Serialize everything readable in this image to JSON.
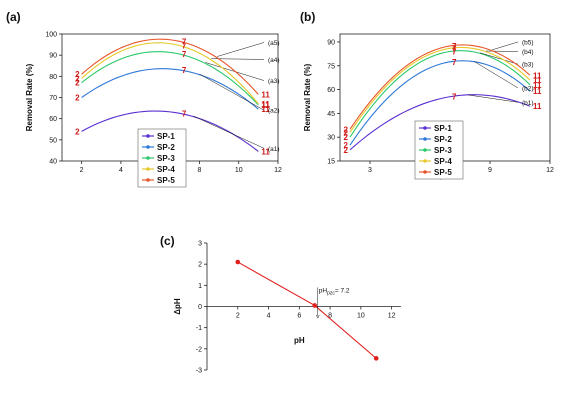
{
  "chart_data": [
    {
      "panel": "(a)",
      "type": "line",
      "xlabel": "pH",
      "ylabel": "Removal Rate (%)",
      "xlim": [
        1,
        12
      ],
      "ylim": [
        40,
        100
      ],
      "xticks": [
        2,
        4,
        6,
        8,
        10,
        12
      ],
      "yticks": [
        40,
        50,
        60,
        70,
        80,
        90,
        100
      ],
      "legend_position": "bottom-center",
      "series": [
        {
          "name": "SP-1",
          "color": "#5b2fd0",
          "marker": "square",
          "x": [
            2,
            7,
            11
          ],
          "y": [
            54,
            62.5,
            44.5
          ],
          "point_labels": [
            "2",
            "7",
            "11"
          ],
          "callout": "(a1)"
        },
        {
          "name": "SP-2",
          "color": "#2e78d8",
          "marker": "circle",
          "x": [
            2,
            7,
            11
          ],
          "y": [
            70,
            83,
            64.5
          ],
          "point_labels": [
            "2",
            "7",
            "11"
          ],
          "callout": "(a2)"
        },
        {
          "name": "SP-3",
          "color": "#2bc86a",
          "marker": "triangle",
          "x": [
            2,
            7,
            11
          ],
          "y": [
            77,
            90.5,
            66.5
          ],
          "point_labels": [
            "2",
            "7",
            "11"
          ],
          "callout": "(a3)"
        },
        {
          "name": "SP-4",
          "color": "#e6c92a",
          "marker": "triangle-down",
          "x": [
            2,
            7,
            11
          ],
          "y": [
            79,
            94.5,
            67
          ],
          "point_labels": [
            "2",
            "7",
            "11"
          ],
          "callout": "(a4)"
        },
        {
          "name": "SP-5",
          "color": "#e8552a",
          "marker": "star",
          "x": [
            2,
            7,
            11
          ],
          "y": [
            81,
            96.5,
            71.5
          ],
          "point_labels": [
            "2",
            "7",
            "11"
          ],
          "callout": "(a5)"
        }
      ]
    },
    {
      "panel": "(b)",
      "type": "line",
      "xlabel": "pH",
      "ylabel": "Removal Rate (%)",
      "xlim": [
        1.5,
        12
      ],
      "ylim": [
        15,
        95
      ],
      "xticks": [
        3,
        6,
        9,
        12
      ],
      "yticks": [
        15,
        30,
        45,
        60,
        75,
        90
      ],
      "legend_position": "bottom-right",
      "series": [
        {
          "name": "SP-1",
          "color": "#5b2fd0",
          "marker": "square",
          "x": [
            2,
            7,
            11
          ],
          "y": [
            22,
            55.5,
            49.5
          ],
          "point_labels": [
            "2",
            "7",
            "11"
          ],
          "callout": "(b1)"
        },
        {
          "name": "SP-2",
          "color": "#2e78d8",
          "marker": "circle",
          "x": [
            2,
            7,
            11
          ],
          "y": [
            25,
            77.5,
            59
          ],
          "point_labels": [
            "2",
            "7",
            "11"
          ],
          "callout": "(b2)"
        },
        {
          "name": "SP-3",
          "color": "#2bc86a",
          "marker": "triangle",
          "x": [
            2,
            7,
            11
          ],
          "y": [
            30,
            84,
            63
          ],
          "point_labels": [
            "2",
            "7",
            "11"
          ],
          "callout": "(b3)"
        },
        {
          "name": "SP-4",
          "color": "#e6c92a",
          "marker": "triangle-down",
          "x": [
            2,
            7,
            11
          ],
          "y": [
            33,
            86,
            66
          ],
          "point_labels": [
            "2",
            "7",
            "11"
          ],
          "callout": "(b4)"
        },
        {
          "name": "SP-5",
          "color": "#e8552a",
          "marker": "star",
          "x": [
            2,
            7,
            11
          ],
          "y": [
            35,
            87.5,
            69
          ],
          "point_labels": [
            "2",
            "7",
            "11"
          ],
          "callout": "(b5)"
        }
      ]
    },
    {
      "panel": "(c)",
      "type": "line",
      "xlabel": "pH",
      "ylabel": "ΔpH",
      "xlim": [
        0,
        13
      ],
      "ylim": [
        -3,
        3
      ],
      "xticks": [
        0,
        2,
        4,
        6,
        8,
        10,
        12
      ],
      "yticks": [
        -3,
        -2,
        -1,
        0,
        1,
        2,
        3
      ],
      "series": [
        {
          "color": "#e0201f",
          "marker": "circle",
          "x": [
            2,
            7,
            11
          ],
          "y": [
            2.1,
            0.05,
            -2.45
          ]
        }
      ],
      "annotation": {
        "prefix": "pH",
        "subscript": "pzc",
        "text": "= 7.2",
        "x": 7.2
      }
    }
  ]
}
